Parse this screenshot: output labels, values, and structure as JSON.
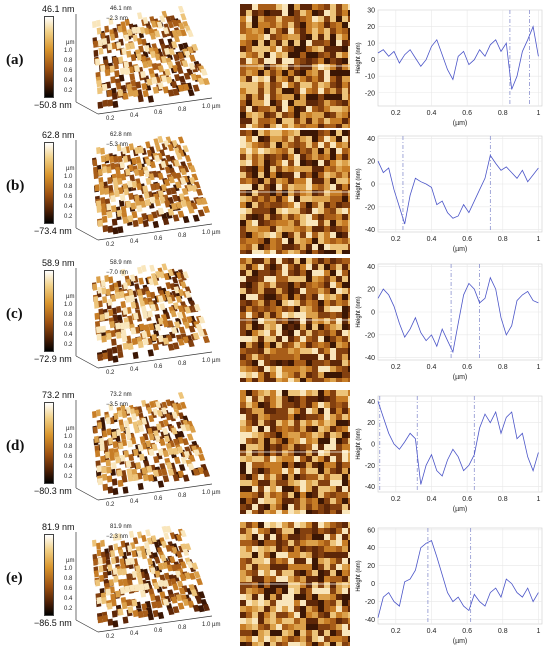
{
  "chart_data": [
    {
      "type": "line",
      "panel_label": "(a)",
      "colorbar": {
        "max": "46.1 nm",
        "min": "−50.8 nm"
      },
      "surface_labels": {
        "max": "46.1 nm",
        "min": "−2.3 nm",
        "z_unit": "µm",
        "z_ticks": [
          "1.0",
          "0.8",
          "0.6",
          "0.4",
          "0.2"
        ],
        "x_ticks": [
          "0.2",
          "0.4",
          "0.6",
          "0.8",
          "1.0 µm"
        ]
      },
      "xlabel": "(µm)",
      "ylabel": "Height (nm)",
      "xlim": [
        0.1,
        1.02
      ],
      "ylim": [
        -28,
        30
      ],
      "xticks": [
        0.2,
        0.4,
        0.6,
        0.8,
        1
      ],
      "yticks": [
        -20,
        -10,
        0,
        10,
        20,
        30
      ],
      "markers": [
        0.84,
        0.95
      ],
      "x": [
        0.1,
        0.13,
        0.16,
        0.19,
        0.22,
        0.25,
        0.28,
        0.31,
        0.34,
        0.37,
        0.4,
        0.43,
        0.46,
        0.49,
        0.52,
        0.55,
        0.58,
        0.61,
        0.64,
        0.67,
        0.7,
        0.73,
        0.76,
        0.79,
        0.82,
        0.85,
        0.88,
        0.91,
        0.94,
        0.97,
        1.0
      ],
      "y": [
        4,
        6,
        2,
        5,
        -2,
        3,
        6,
        1,
        -4,
        0,
        8,
        12,
        3,
        -6,
        -12,
        2,
        5,
        -3,
        0,
        6,
        2,
        9,
        12,
        5,
        10,
        -18,
        -10,
        5,
        12,
        20,
        2
      ]
    },
    {
      "type": "line",
      "panel_label": "(b)",
      "colorbar": {
        "max": "62.8 nm",
        "min": "−73.4 nm"
      },
      "surface_labels": {
        "max": "62.8 nm",
        "min": "−5.3 nm",
        "z_unit": "µm",
        "z_ticks": [
          "1.0",
          "0.8",
          "0.6",
          "0.4",
          "0.2"
        ],
        "x_ticks": [
          "0.2",
          "0.4",
          "0.6",
          "0.8",
          "1.0 µm"
        ]
      },
      "xlabel": "(µm)",
      "ylabel": "Height (nm)",
      "xlim": [
        0.1,
        1.02
      ],
      "ylim": [
        -42,
        42
      ],
      "xticks": [
        0.2,
        0.4,
        0.6,
        0.8,
        1
      ],
      "yticks": [
        -40,
        -20,
        0,
        20,
        40
      ],
      "markers": [
        0.24,
        0.73
      ],
      "x": [
        0.1,
        0.13,
        0.16,
        0.19,
        0.22,
        0.25,
        0.28,
        0.31,
        0.34,
        0.37,
        0.4,
        0.43,
        0.46,
        0.49,
        0.52,
        0.55,
        0.58,
        0.61,
        0.64,
        0.67,
        0.7,
        0.73,
        0.76,
        0.79,
        0.82,
        0.85,
        0.88,
        0.91,
        0.94,
        0.97,
        1.0
      ],
      "y": [
        20,
        10,
        14,
        -5,
        -20,
        -35,
        -10,
        5,
        2,
        0,
        -3,
        -18,
        -15,
        -25,
        -30,
        -28,
        -18,
        -25,
        -15,
        -5,
        5,
        25,
        18,
        12,
        15,
        10,
        5,
        12,
        2,
        8,
        14
      ]
    },
    {
      "type": "line",
      "panel_label": "(c)",
      "colorbar": {
        "max": "58.9 nm",
        "min": "−72.9 nm"
      },
      "surface_labels": {
        "max": "58.9 nm",
        "min": "−7.0 nm",
        "z_unit": "µm",
        "z_ticks": [
          "1.0",
          "0.8",
          "0.6",
          "0.4",
          "0.2"
        ],
        "x_ticks": [
          "0.2",
          "0.4",
          "0.6",
          "0.8",
          "1.0 µm"
        ]
      },
      "xlabel": "(µm)",
      "ylabel": "Height (nm)",
      "xlim": [
        0.1,
        1.02
      ],
      "ylim": [
        -42,
        42
      ],
      "xticks": [
        0.2,
        0.4,
        0.6,
        0.8,
        1
      ],
      "yticks": [
        -40,
        -20,
        0,
        20,
        40
      ],
      "markers": [
        0.51,
        0.67
      ],
      "x": [
        0.1,
        0.13,
        0.16,
        0.19,
        0.22,
        0.25,
        0.28,
        0.31,
        0.34,
        0.37,
        0.4,
        0.43,
        0.46,
        0.49,
        0.52,
        0.55,
        0.58,
        0.61,
        0.64,
        0.67,
        0.7,
        0.73,
        0.76,
        0.79,
        0.82,
        0.85,
        0.88,
        0.91,
        0.94,
        0.97,
        1.0
      ],
      "y": [
        12,
        20,
        15,
        5,
        -10,
        -22,
        -15,
        -5,
        -18,
        -25,
        -20,
        -30,
        -15,
        -25,
        -35,
        -10,
        15,
        25,
        20,
        8,
        12,
        30,
        20,
        -5,
        -20,
        -12,
        10,
        15,
        18,
        10,
        8
      ]
    },
    {
      "type": "line",
      "panel_label": "(d)",
      "colorbar": {
        "max": "73.2 nm",
        "min": "−80.3 nm"
      },
      "surface_labels": {
        "max": "73.2 nm",
        "min": "−3.5 nm",
        "z_unit": "µm",
        "z_ticks": [
          "1.0",
          "0.8",
          "0.6",
          "0.4",
          "0.2"
        ],
        "x_ticks": [
          "0.2",
          "0.4",
          "0.6",
          "0.8",
          "1.0 µm"
        ]
      },
      "xlabel": "(µm)",
      "ylabel": "Height (nm)",
      "xlim": [
        0.1,
        1.02
      ],
      "ylim": [
        -45,
        45
      ],
      "xticks": [
        0.2,
        0.4,
        0.6,
        0.8,
        1
      ],
      "yticks": [
        -40,
        -20,
        0,
        20,
        40
      ],
      "markers": [
        0.11,
        0.32,
        0.64
      ],
      "x": [
        0.1,
        0.13,
        0.16,
        0.19,
        0.22,
        0.25,
        0.28,
        0.31,
        0.34,
        0.37,
        0.4,
        0.43,
        0.46,
        0.49,
        0.52,
        0.55,
        0.58,
        0.61,
        0.64,
        0.67,
        0.7,
        0.73,
        0.76,
        0.79,
        0.82,
        0.85,
        0.88,
        0.91,
        0.94,
        0.97,
        1.0
      ],
      "y": [
        40,
        25,
        10,
        0,
        -5,
        2,
        10,
        5,
        -38,
        -20,
        -10,
        -25,
        -30,
        -15,
        -5,
        -12,
        -25,
        -20,
        -10,
        15,
        28,
        20,
        30,
        10,
        25,
        30,
        5,
        10,
        -12,
        -25,
        -8
      ]
    },
    {
      "type": "line",
      "panel_label": "(e)",
      "colorbar": {
        "max": "81.9 nm",
        "min": "−86.5 nm"
      },
      "surface_labels": {
        "max": "81.9 nm",
        "min": "−2.3 nm",
        "z_unit": "µm",
        "z_ticks": [
          "1.0",
          "0.8",
          "0.6",
          "0.4",
          "0.2"
        ],
        "x_ticks": [
          "0.2",
          "0.4",
          "0.6",
          "0.8",
          "1.0 µm"
        ]
      },
      "xlabel": "(µm)",
      "ylabel": "Height (nm)",
      "xlim": [
        0.1,
        1.02
      ],
      "ylim": [
        -45,
        62
      ],
      "xticks": [
        0.2,
        0.4,
        0.6,
        0.8,
        1
      ],
      "yticks": [
        -40,
        -20,
        0,
        20,
        40,
        60
      ],
      "markers": [
        0.38,
        0.62
      ],
      "x": [
        0.1,
        0.13,
        0.16,
        0.19,
        0.22,
        0.25,
        0.28,
        0.31,
        0.34,
        0.37,
        0.4,
        0.43,
        0.46,
        0.49,
        0.52,
        0.55,
        0.58,
        0.61,
        0.64,
        0.67,
        0.7,
        0.73,
        0.76,
        0.79,
        0.82,
        0.85,
        0.88,
        0.91,
        0.94,
        0.97,
        1.0
      ],
      "y": [
        -38,
        -15,
        -10,
        -20,
        -25,
        2,
        5,
        15,
        40,
        45,
        48,
        30,
        10,
        -10,
        -20,
        -15,
        -25,
        -30,
        -12,
        -20,
        -25,
        -10,
        -5,
        -15,
        5,
        0,
        -10,
        -15,
        -5,
        -20,
        -10
      ]
    }
  ]
}
